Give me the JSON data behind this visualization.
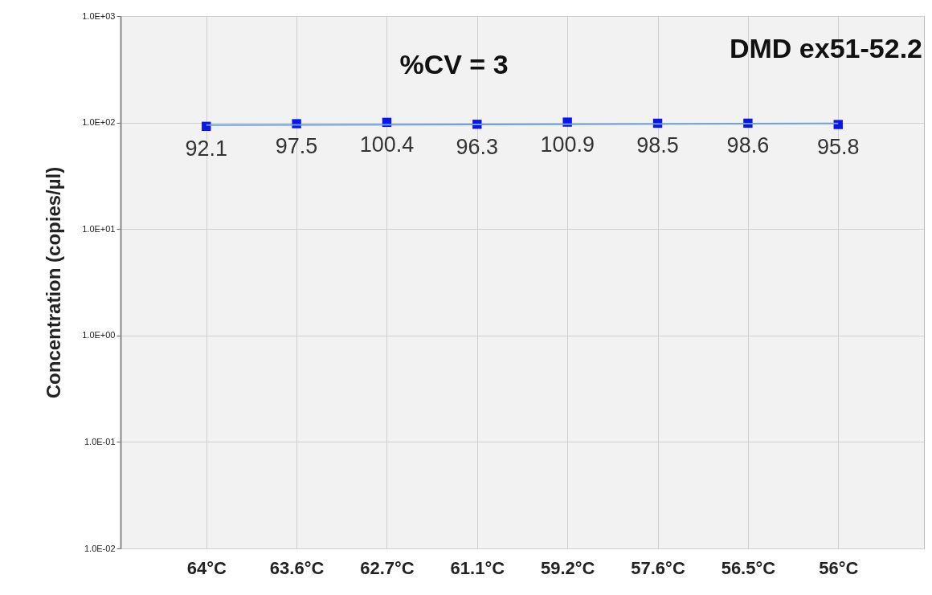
{
  "chart_data": {
    "type": "scatter",
    "ylabel": "Concentration  (copies/µl)",
    "categories": [
      "64°C",
      "63.6°C",
      "62.7°C",
      "61.1°C",
      "59.2°C",
      "57.6°C",
      "56.5°C",
      "56°C"
    ],
    "series": [
      {
        "color": "#0a14f0",
        "marker": "square",
        "data_labels": true,
        "values": [
          92.1,
          97.5,
          100.4,
          96.3,
          100.9,
          98.5,
          98.6,
          95.8
        ]
      },
      {
        "type": "line",
        "color": "#6fa0d8",
        "marker": "none",
        "x": [
          "64°C",
          "56°C"
        ],
        "values": [
          94.5,
          98
        ]
      }
    ],
    "log": true,
    "ylim": [
      0.01,
      1000
    ],
    "yticks": [
      {
        "value": 0.01,
        "label": "1.0E-02"
      },
      {
        "value": 0.1,
        "label": "1.0E-01"
      },
      {
        "value": 1,
        "label": "1.0E+00"
      },
      {
        "value": 10,
        "label": "1.0E+01"
      },
      {
        "value": 100,
        "label": "1.0E+02"
      },
      {
        "value": 1000,
        "label": "1.0E+03"
      }
    ],
    "grid": true,
    "annotations": [
      "%CV = 3",
      "DMD ex51-52.2"
    ]
  }
}
